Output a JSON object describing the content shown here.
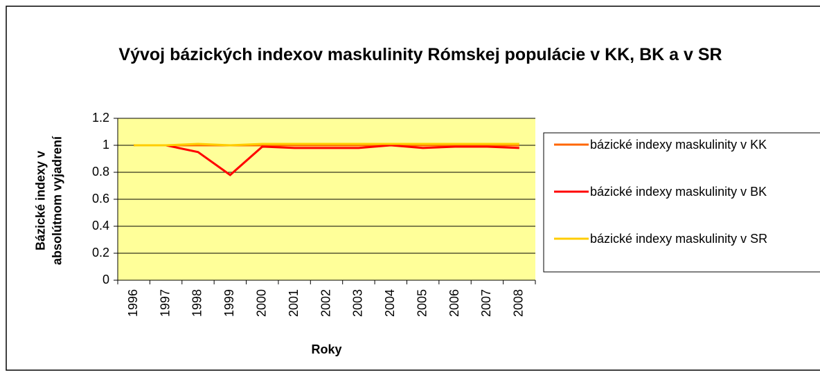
{
  "chart_data": {
    "type": "line",
    "title": "Vývoj bázických indexov maskulinity Rómskej populácie v KK, BK a v SR",
    "xlabel": "Roky",
    "ylabel": "Bázické indexy v absolútnom vyjadrení",
    "categories": [
      "1996",
      "1997",
      "1998",
      "1999",
      "2000",
      "2001",
      "2002",
      "2003",
      "2004",
      "2005",
      "2006",
      "2007",
      "2008"
    ],
    "series": [
      {
        "name": "bázické indexy maskulinity v KK",
        "color": "#ff6600",
        "values": [
          1,
          1,
          1,
          1,
          1,
          1,
          1,
          1,
          1,
          1,
          1,
          1,
          1
        ]
      },
      {
        "name": "bázické indexy maskulinity v BK",
        "color": "#ff0000",
        "values": [
          1,
          1,
          0.95,
          0.78,
          0.99,
          0.98,
          0.98,
          0.98,
          1,
          0.98,
          0.99,
          0.99,
          0.98
        ]
      },
      {
        "name": "bázické indexy maskulinity v SR",
        "color": "#ffcc00",
        "values": [
          1,
          1,
          1.01,
          1,
          1.01,
          1.01,
          1.01,
          1.01,
          1.01,
          1.01,
          1.01,
          1.01,
          1.01
        ]
      }
    ],
    "ylim": [
      0,
      1.2
    ],
    "yticks": [
      0,
      0.2,
      0.4,
      0.6,
      0.8,
      1,
      1.2
    ],
    "grid": true,
    "plot_background": "#ffff99",
    "legend": "right"
  }
}
